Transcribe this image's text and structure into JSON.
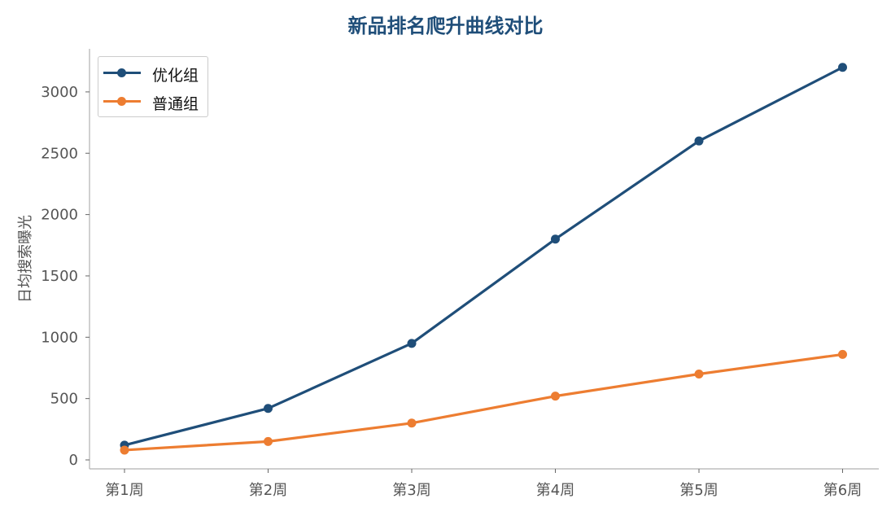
{
  "chart_data": {
    "type": "line",
    "title": "新品排名爬升曲线对比",
    "ylabel": "日均搜索曝光",
    "xlabel": "",
    "categories": [
      "第1周",
      "第2周",
      "第3周",
      "第4周",
      "第5周",
      "第6周"
    ],
    "series": [
      {
        "name": "优化组",
        "color": "#1f4e79",
        "values": [
          120,
          420,
          950,
          1800,
          2600,
          3200
        ]
      },
      {
        "name": "普通组",
        "color": "#ed7d31",
        "values": [
          80,
          150,
          300,
          520,
          700,
          860
        ]
      }
    ],
    "ylim": [
      0,
      3200
    ],
    "yticks": [
      0,
      500,
      1000,
      1500,
      2000,
      2500,
      3000
    ],
    "grid": false,
    "legend_position": "top-left"
  }
}
